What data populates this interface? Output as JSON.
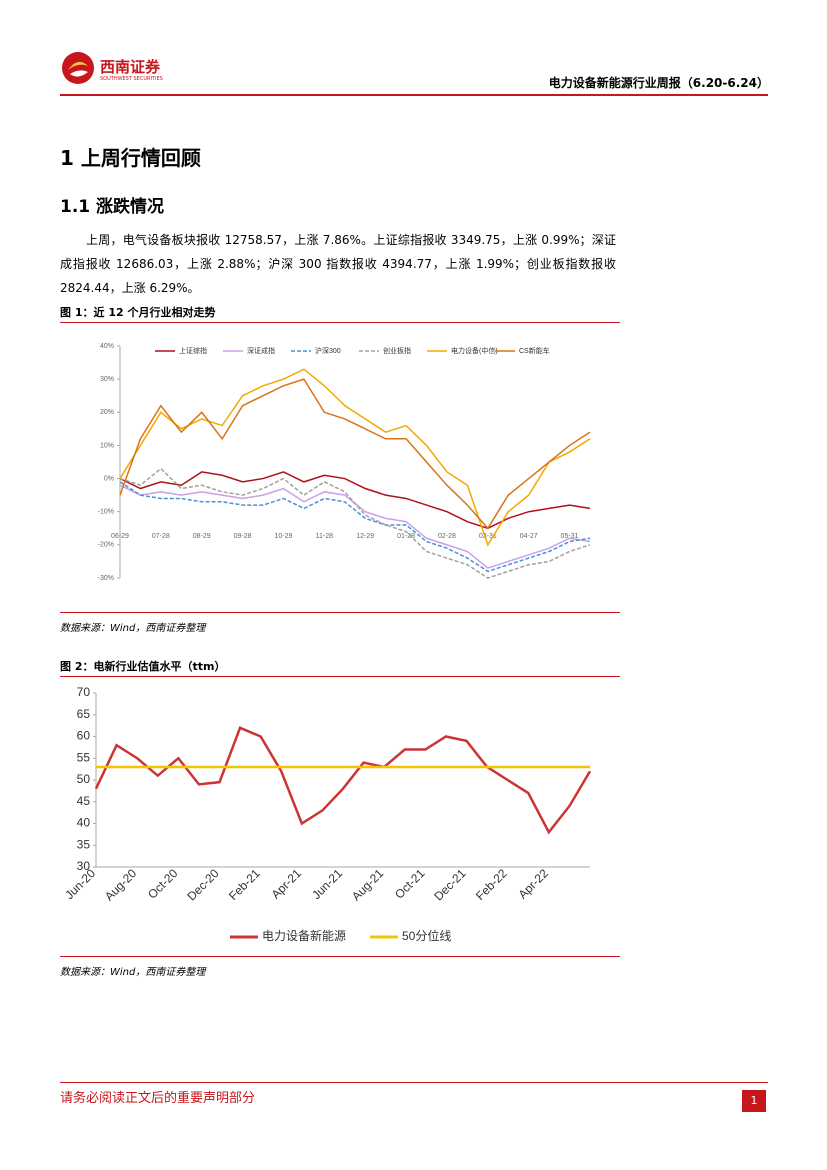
{
  "header": {
    "brand": "西南证券",
    "brand_en": "SOUTHWEST SECURITIES",
    "report": "电力设备新能源行业周报（6.20-6.24）"
  },
  "sections": [
    "1 上周行情回顾",
    "1.1 涨跌情况"
  ],
  "body": "上周，电气设备板块报收 12758.57，上涨 7.86%。上证综指报收 3349.75，上涨 0.99%；深证成指报收 12686.03，上涨 2.88%；沪深 300 指数报收 4394.77，上涨 1.99%；创业板指数报收 2824.44，上涨 6.29%。",
  "figures": [
    {
      "caption": "图 1：近 12 个月行业相对走势",
      "source": "数据来源：Wind，西南证券整理"
    },
    {
      "caption": "图 2：电新行业估值水平（ttm）",
      "source": "数据来源：Wind，西南证券整理"
    }
  ],
  "footer": {
    "notice": "请务必阅读正文后的重要声明部分",
    "page": "1"
  },
  "chart_data": [
    {
      "type": "line",
      "categories": [
        "06-29",
        null,
        "07-28",
        null,
        "08-29",
        null,
        "09-28",
        null,
        "10-29",
        null,
        "11-28",
        null,
        "12-29",
        null,
        "01-28",
        null,
        "02-28",
        null,
        "03-31",
        null,
        "04-27",
        null,
        "05-31",
        null
      ],
      "ylim": [
        -30,
        40
      ],
      "yticks": [
        {
          "value": 40,
          "label": "40%"
        },
        {
          "value": 30,
          "label": "30%"
        },
        {
          "value": 20,
          "label": "20%"
        },
        {
          "value": 10,
          "label": "10%"
        },
        {
          "value": 0,
          "label": "0%"
        },
        {
          "value": -10,
          "label": "-10%"
        },
        {
          "value": -20,
          "label": "-20%"
        },
        {
          "value": -30,
          "label": "-30%"
        }
      ],
      "legend": "top",
      "series": [
        {
          "name": "上证综指",
          "color": "#b0101a",
          "dash": false,
          "values": [
            0,
            -3,
            -1,
            -2,
            2,
            1,
            -1,
            0,
            2,
            -1,
            1,
            0,
            -3,
            -5,
            -6,
            -8,
            -10,
            -13,
            -15,
            -12,
            -10,
            -9,
            -8,
            -9
          ]
        },
        {
          "name": "深证成指",
          "color": "#c9a0e8",
          "dash": false,
          "values": [
            -2,
            -5,
            -4,
            -5,
            -4,
            -5,
            -6,
            -5,
            -3,
            -7,
            -4,
            -5,
            -10,
            -12,
            -13,
            -18,
            -20,
            -22,
            -27,
            -25,
            -23,
            -21,
            -18,
            -19
          ]
        },
        {
          "name": "沪深300",
          "color": "#4a90d9",
          "dash": true,
          "values": [
            -1,
            -5,
            -6,
            -6,
            -7,
            -7,
            -8,
            -8,
            -6,
            -9,
            -6,
            -7,
            -12,
            -14,
            -14,
            -19,
            -21,
            -24,
            -28,
            -26,
            -24,
            -22,
            -19,
            -18
          ]
        },
        {
          "name": "创业板指",
          "color": "#a0a0a0",
          "dash": true,
          "values": [
            0,
            -2,
            3,
            -3,
            -2,
            -4,
            -5,
            -3,
            0,
            -5,
            -1,
            -4,
            -11,
            -14,
            -16,
            -22,
            -24,
            -26,
            -30,
            -28,
            -26,
            -25,
            -22,
            -20
          ]
        },
        {
          "name": "电力设备(中信)",
          "color": "#f2a900",
          "dash": false,
          "values": [
            0,
            10,
            20,
            15,
            18,
            16,
            25,
            28,
            30,
            33,
            28,
            22,
            18,
            14,
            16,
            10,
            2,
            -2,
            -20,
            -10,
            -5,
            5,
            8,
            12
          ]
        },
        {
          "name": "CS新能车",
          "color": "#d9731a",
          "dash": false,
          "values": [
            -5,
            12,
            22,
            14,
            20,
            12,
            22,
            25,
            28,
            30,
            20,
            18,
            15,
            12,
            12,
            5,
            -2,
            -8,
            -15,
            -5,
            0,
            5,
            10,
            14
          ]
        }
      ]
    },
    {
      "type": "line",
      "categories": [
        "Jun-20",
        null,
        "Aug-20",
        null,
        "Oct-20",
        null,
        "Dec-20",
        null,
        "Feb-21",
        null,
        "Apr-21",
        null,
        "Jun-21",
        null,
        "Aug-21",
        null,
        "Oct-21",
        null,
        "Dec-21",
        null,
        "Feb-22",
        null,
        "Apr-22",
        null,
        null
      ],
      "ylim": [
        30,
        70
      ],
      "yticks": [
        30,
        35,
        40,
        45,
        50,
        55,
        60,
        65,
        70
      ],
      "legend": "bottom",
      "series": [
        {
          "name": "电力设备新能源",
          "color": "#cc3333",
          "dash": false,
          "values": [
            48,
            58,
            55,
            51,
            55,
            49,
            49.5,
            62,
            60,
            52,
            40,
            43,
            48,
            54,
            53,
            57,
            57,
            60,
            59,
            53,
            50,
            47,
            38,
            44,
            52
          ]
        },
        {
          "name": "50分位线",
          "color": "#f5c400",
          "dash": false,
          "values": [
            53,
            53,
            53,
            53,
            53,
            53,
            53,
            53,
            53,
            53,
            53,
            53,
            53,
            53,
            53,
            53,
            53,
            53,
            53,
            53,
            53,
            53,
            53,
            53,
            53
          ]
        }
      ]
    }
  ]
}
